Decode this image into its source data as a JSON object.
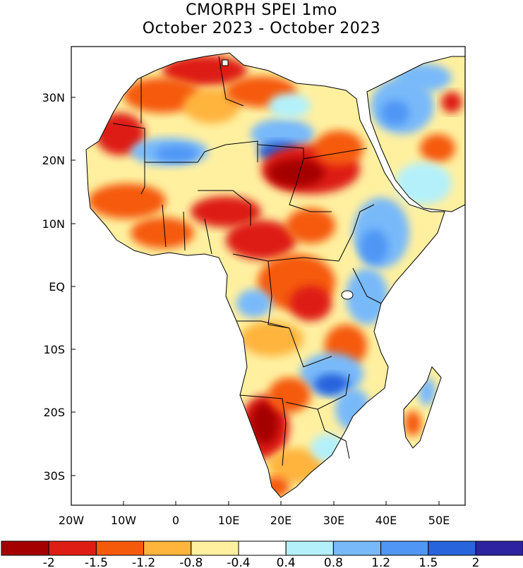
{
  "title_line1": "CMORPH SPEI 1mo",
  "title_line2": "October 2023 - October 2023",
  "lat_labels": [
    "30N",
    "20N",
    "10N",
    "EQ",
    "10S",
    "20S",
    "30S"
  ],
  "lon_labels": [
    "20W",
    "10W",
    "0",
    "10E",
    "20E",
    "30E",
    "40E",
    "50E"
  ],
  "legend": {
    "colors": [
      "#a50000",
      "#de1e14",
      "#f55a0a",
      "#ffb43c",
      "#fff0a0",
      "#ffffff",
      "#b4f0fa",
      "#78b9fa",
      "#5096f5",
      "#2864dc",
      "#2d23a0"
    ],
    "labels": [
      "-2",
      "-1.5",
      "-1.2",
      "-0.8",
      "-0.4",
      "0.4",
      "0.8",
      "1.2",
      "1.5",
      "2"
    ]
  },
  "palette": {
    "dry_extreme": "#a50000",
    "dry_severe": "#de1e14",
    "dry_moderate": "#f55a0a",
    "dry_mild": "#ffb43c",
    "dry_slight": "#fff0a0",
    "wet_slight": "#b4f0fa",
    "wet_mild": "#78b9fa",
    "wet_moderate": "#5096f5",
    "wet_severe": "#2864dc",
    "wet_extreme": "#2d23a0"
  }
}
